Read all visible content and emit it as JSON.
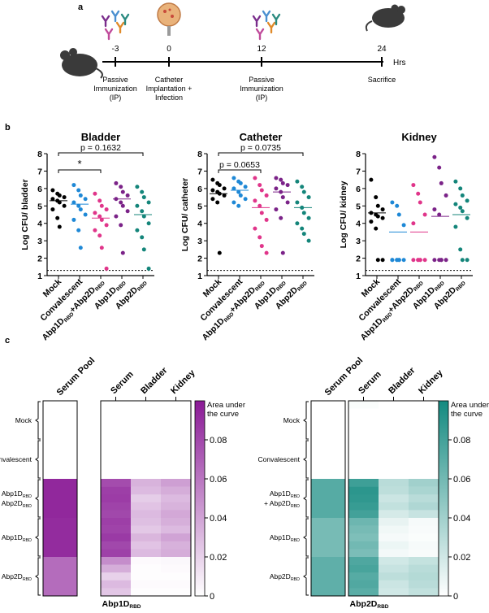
{
  "panels": {
    "a": "a",
    "b": "b",
    "c": "c"
  },
  "timeline": {
    "points": [
      {
        "time": "-3",
        "label_lines": [
          "Passive",
          "Immunization",
          "(IP)"
        ]
      },
      {
        "time": "0",
        "label_lines": [
          "Catheter",
          "Implantation +",
          "Infection"
        ]
      },
      {
        "time": "12",
        "label_lines": [
          "Passive",
          "Immunization",
          "(IP)"
        ]
      },
      {
        "time": "24",
        "label_lines": [
          "Sacrifice"
        ]
      }
    ],
    "unit": "Hrs",
    "colors": {
      "ab_purple": "#7a2d8c",
      "ab_blue": "#4a8fd0",
      "ab_orange": "#e08a2a",
      "ab_teal": "#2a8a80",
      "ab_pink": "#c04a9a"
    }
  },
  "chart_data": [
    {
      "type": "scatter",
      "title": "Bladder",
      "ylabel": "Log CFU/ bladder",
      "ylim": [
        1,
        8
      ],
      "yticks": [
        "1",
        "2",
        "3",
        "4",
        "5",
        "6",
        "7",
        "8"
      ],
      "lod": 1.3,
      "categories": [
        "Mock",
        "Convalescent",
        "Abp1D_RBD+Abp2D_RBD",
        "Abp1D_RBD",
        "Abp2D_RBD"
      ],
      "series": [
        {
          "name": "Mock",
          "color": "#000000",
          "mean": 5.3,
          "values": [
            5.9,
            5.7,
            5.6,
            5.5,
            5.4,
            5.3,
            5.2,
            5.0,
            4.8,
            4.3,
            3.8
          ]
        },
        {
          "name": "Convalescent",
          "color": "#1e88d6",
          "mean": 5.1,
          "values": [
            6.2,
            5.9,
            5.6,
            5.4,
            5.2,
            5.0,
            4.8,
            4.5,
            4.2,
            3.6,
            2.6
          ]
        },
        {
          "name": "Abp1D_RBD+Abp2D_RBD",
          "color": "#e0358a",
          "mean": 4.3,
          "values": [
            5.7,
            5.3,
            5.0,
            4.8,
            4.6,
            4.4,
            4.2,
            3.9,
            3.6,
            3.3,
            2.6,
            1.4
          ]
        },
        {
          "name": "Abp1D_RBD",
          "color": "#7b2388",
          "mean": 5.4,
          "values": [
            6.3,
            6.1,
            5.8,
            5.6,
            5.4,
            5.2,
            5.0,
            4.7,
            4.4,
            3.9,
            2.3
          ]
        },
        {
          "name": "Abp2D_RBD",
          "color": "#14857a",
          "mean": 4.5,
          "values": [
            6.1,
            5.8,
            5.5,
            5.2,
            5.0,
            4.7,
            4.4,
            4.0,
            3.6,
            3.2,
            2.5,
            1.4
          ]
        }
      ],
      "brackets": [
        {
          "from": 0,
          "to": 2,
          "label": "*"
        },
        {
          "from": 0,
          "to": 4,
          "label": "p = 0.1632"
        }
      ]
    },
    {
      "type": "scatter",
      "title": "Catheter",
      "ylabel": "Log CFU/ catheter",
      "ylim": [
        1,
        8
      ],
      "yticks": [
        "1",
        "2",
        "3",
        "4",
        "5",
        "6",
        "7",
        "8"
      ],
      "lod": 1.3,
      "categories": [
        "Mock",
        "Convalescent",
        "Abp1D_RBD+Abp2D_RBD",
        "Abp1D_RBD",
        "Abp2D_RBD"
      ],
      "series": [
        {
          "name": "Mock",
          "color": "#000000",
          "mean": 5.7,
          "values": [
            6.5,
            6.3,
            6.2,
            6.0,
            5.9,
            5.8,
            5.7,
            5.6,
            5.4,
            5.2,
            2.3
          ]
        },
        {
          "name": "Convalescent",
          "color": "#1e88d6",
          "mean": 5.9,
          "values": [
            6.6,
            6.4,
            6.3,
            6.1,
            6.0,
            5.8,
            5.6,
            5.4,
            5.2,
            5.0
          ]
        },
        {
          "name": "Abp1D_RBD+Abp2D_RBD",
          "color": "#e0358a",
          "mean": 4.9,
          "values": [
            6.6,
            6.2,
            5.9,
            5.6,
            5.3,
            5.0,
            4.6,
            4.2,
            3.7,
            3.2,
            2.7,
            2.3
          ]
        },
        {
          "name": "Abp1D_RBD",
          "color": "#7b2388",
          "mean": 5.8,
          "values": [
            6.6,
            6.5,
            6.3,
            6.2,
            6.0,
            5.8,
            5.5,
            5.2,
            4.8,
            4.3,
            2.3
          ]
        },
        {
          "name": "Abp2D_RBD",
          "color": "#14857a",
          "mean": 4.9,
          "values": [
            6.4,
            6.1,
            5.8,
            5.5,
            5.2,
            4.9,
            4.6,
            4.3,
            4.0,
            3.7,
            3.4,
            3.0
          ]
        }
      ],
      "brackets": [
        {
          "from": 0,
          "to": 2,
          "label": "p = 0.0653"
        },
        {
          "from": 0,
          "to": 4,
          "label": "p = 0.0735"
        }
      ]
    },
    {
      "type": "scatter",
      "title": "Kidney",
      "ylabel": "Log CFU/ kidney",
      "ylim": [
        1,
        8
      ],
      "yticks": [
        "1",
        "2",
        "3",
        "4",
        "5",
        "6",
        "7",
        "8"
      ],
      "lod": 1.3,
      "categories": [
        "Mock",
        "Convalescent",
        "Abp1D_RBD+Abp2D_RBD",
        "Abp1D_RBD",
        "Abp2D_RBD"
      ],
      "series": [
        {
          "name": "Mock",
          "color": "#000000",
          "mean": 4.6,
          "values": [
            6.5,
            5.5,
            5.0,
            4.8,
            4.6,
            4.5,
            4.4,
            4.3,
            4.1,
            3.7,
            1.9,
            1.9
          ]
        },
        {
          "name": "Convalescent",
          "color": "#1e88d6",
          "mean": 3.5,
          "values": [
            5.2,
            5.0,
            4.5,
            3.9,
            1.9,
            1.9,
            1.9,
            1.9,
            1.9,
            1.9,
            1.9
          ]
        },
        {
          "name": "Abp1D_RBD+Abp2D_RBD",
          "color": "#e0358a",
          "mean": 3.5,
          "values": [
            6.2,
            5.7,
            5.2,
            4.5,
            4.0,
            1.9,
            1.9,
            1.9,
            1.9,
            1.9,
            1.9
          ]
        },
        {
          "name": "Abp1D_RBD",
          "color": "#7b2388",
          "mean": 4.4,
          "values": [
            7.8,
            7.2,
            6.3,
            5.6,
            4.8,
            4.5,
            1.9,
            1.9,
            1.9,
            1.9,
            1.9
          ]
        },
        {
          "name": "Abp2D_RBD",
          "color": "#14857a",
          "mean": 4.5,
          "values": [
            6.4,
            6.0,
            5.6,
            5.3,
            5.1,
            4.9,
            4.7,
            4.3,
            3.8,
            2.5,
            1.9,
            1.9
          ]
        }
      ],
      "brackets": []
    },
    {
      "type": "heatmap",
      "title": "Abp1D_RBD",
      "legend_title_lines": [
        "Area under",
        "the curve"
      ],
      "color_low": "#ffffff",
      "color_high": "#8a1a96",
      "vmin": 0,
      "vmax": 0.1,
      "legend_ticks": [
        "0.08",
        "0.06",
        "0.04",
        "0.02",
        "0"
      ],
      "pool_label": "Serum Pool",
      "columns": [
        "Serum",
        "Bladder",
        "Kidney"
      ],
      "groups": [
        {
          "name": "Mock"
        },
        {
          "name": "Convalescent"
        },
        {
          "name": "Abp1D_RBD + Abp2D_RBD"
        },
        {
          "name": "Abp1D_RBD"
        },
        {
          "name": "Abp2D_RBD"
        }
      ],
      "pool": [
        0,
        0,
        0.094,
        0.092,
        0.064
      ],
      "rows": [
        [
          0,
          0,
          0
        ],
        [
          0,
          0,
          0
        ],
        [
          0,
          0,
          0
        ],
        [
          0,
          0,
          0
        ],
        [
          0,
          0,
          0
        ],
        [
          0,
          0,
          0
        ],
        [
          0,
          0,
          0
        ],
        [
          0,
          0,
          0
        ],
        [
          0,
          0,
          0
        ],
        [
          0,
          0,
          0
        ],
        [
          0.078,
          0.033,
          0.042
        ],
        [
          0.084,
          0.03,
          0.036
        ],
        [
          0.085,
          0.022,
          0.03
        ],
        [
          0.082,
          0.026,
          0.033
        ],
        [
          0.08,
          0.03,
          0.038
        ],
        [
          0.084,
          0.028,
          0.035
        ],
        [
          0.082,
          0.024,
          0.03
        ],
        [
          0.086,
          0.032,
          0.04
        ],
        [
          0.08,
          0.026,
          0.034
        ],
        [
          0.083,
          0.03,
          0.036
        ],
        [
          0.05,
          0.002,
          0.003
        ],
        [
          0.036,
          0.001,
          0.002
        ],
        [
          0.02,
          0.001,
          0.001
        ],
        [
          0.03,
          0.002,
          0.002
        ],
        [
          0.025,
          0.001,
          0.001
        ]
      ]
    },
    {
      "type": "heatmap",
      "title": "Abp2D_RBD",
      "legend_title_lines": [
        "Area under",
        "the curve"
      ],
      "color_low": "#ffffff",
      "color_high": "#148a80",
      "vmin": 0,
      "vmax": 0.1,
      "legend_ticks": [
        "0.08",
        "0.06",
        "0.04",
        "0.02",
        "0"
      ],
      "pool_label": "Serum Pool",
      "columns": [
        "Serum",
        "Bladder",
        "Kidney"
      ],
      "groups": [
        {
          "name": "Mock"
        },
        {
          "name": "Convalescent"
        },
        {
          "name": "Abp1D_RBD + Abp2D_RBD"
        },
        {
          "name": "Abp1D_RBD"
        },
        {
          "name": "Abp2D_RBD"
        }
      ],
      "pool": [
        0,
        0,
        0.072,
        0.058,
        0.068
      ],
      "rows": [
        [
          0.002,
          0,
          0
        ],
        [
          0,
          0,
          0
        ],
        [
          0,
          0,
          0
        ],
        [
          0,
          0,
          0
        ],
        [
          0,
          0,
          0
        ],
        [
          0,
          0,
          0
        ],
        [
          0,
          0,
          0
        ],
        [
          0,
          0,
          0
        ],
        [
          0,
          0,
          0
        ],
        [
          0,
          0,
          0
        ],
        [
          0.082,
          0.03,
          0.04
        ],
        [
          0.09,
          0.028,
          0.036
        ],
        [
          0.088,
          0.022,
          0.03
        ],
        [
          0.085,
          0.026,
          0.034
        ],
        [
          0.08,
          0.018,
          0.024
        ],
        [
          0.062,
          0.01,
          0.004
        ],
        [
          0.058,
          0.006,
          0.003
        ],
        [
          0.055,
          0.004,
          0.002
        ],
        [
          0.06,
          0.008,
          0.004
        ],
        [
          0.056,
          0.005,
          0.003
        ],
        [
          0.075,
          0.02,
          0.025
        ],
        [
          0.078,
          0.024,
          0.03
        ],
        [
          0.072,
          0.028,
          0.032
        ],
        [
          0.074,
          0.022,
          0.03
        ],
        [
          0.07,
          0.02,
          0.026
        ]
      ]
    }
  ]
}
